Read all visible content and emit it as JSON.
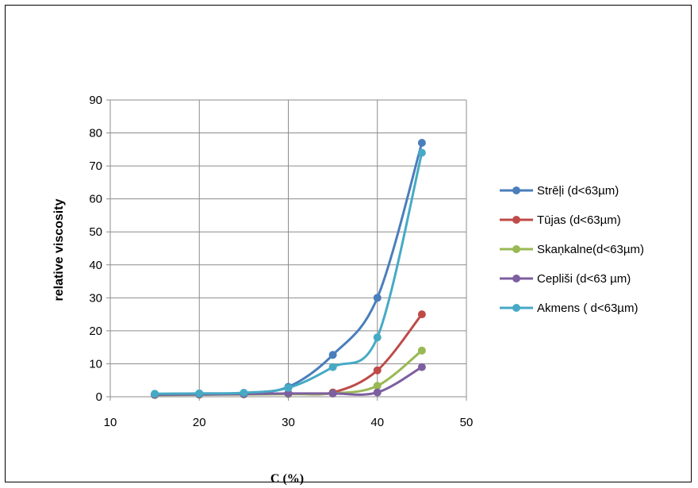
{
  "chart_data": {
    "type": "line",
    "title": "",
    "xlabel": "C (%)",
    "ylabel": "relative viscosity",
    "xlim": [
      10,
      50
    ],
    "ylim": [
      0,
      90
    ],
    "xticks": [
      10,
      20,
      30,
      40,
      50
    ],
    "yticks": [
      0,
      10,
      20,
      30,
      40,
      50,
      60,
      70,
      80,
      90
    ],
    "grid": true,
    "smooth": true,
    "legend_position": "right",
    "x": [
      15,
      20,
      25,
      30,
      35,
      40,
      45
    ],
    "series": [
      {
        "name": "Strēļi (d<63µm)",
        "color": "#4A7EBB",
        "values": [
          0.8,
          1.0,
          1.1,
          3.0,
          12.7,
          30.0,
          77.0
        ]
      },
      {
        "name": "Tūjas (d<63µm)",
        "color": "#BE4B48",
        "values": [
          0.6,
          0.7,
          0.8,
          1.0,
          1.3,
          8.0,
          25.0
        ]
      },
      {
        "name": "Skaņkalne(d<63µm)",
        "color": "#98B954",
        "values": [
          0.5,
          0.6,
          0.7,
          0.8,
          1.0,
          3.3,
          14.0
        ]
      },
      {
        "name": "Cepliši (d<63 µm)",
        "color": "#7D5FA0",
        "values": [
          0.6,
          0.7,
          0.8,
          1.0,
          1.0,
          1.3,
          9.0
        ]
      },
      {
        "name": "Akmens ( d<63µm)",
        "color": "#46AAC5",
        "values": [
          0.9,
          1.0,
          1.2,
          2.7,
          9.0,
          18.0,
          74.0
        ]
      }
    ]
  }
}
